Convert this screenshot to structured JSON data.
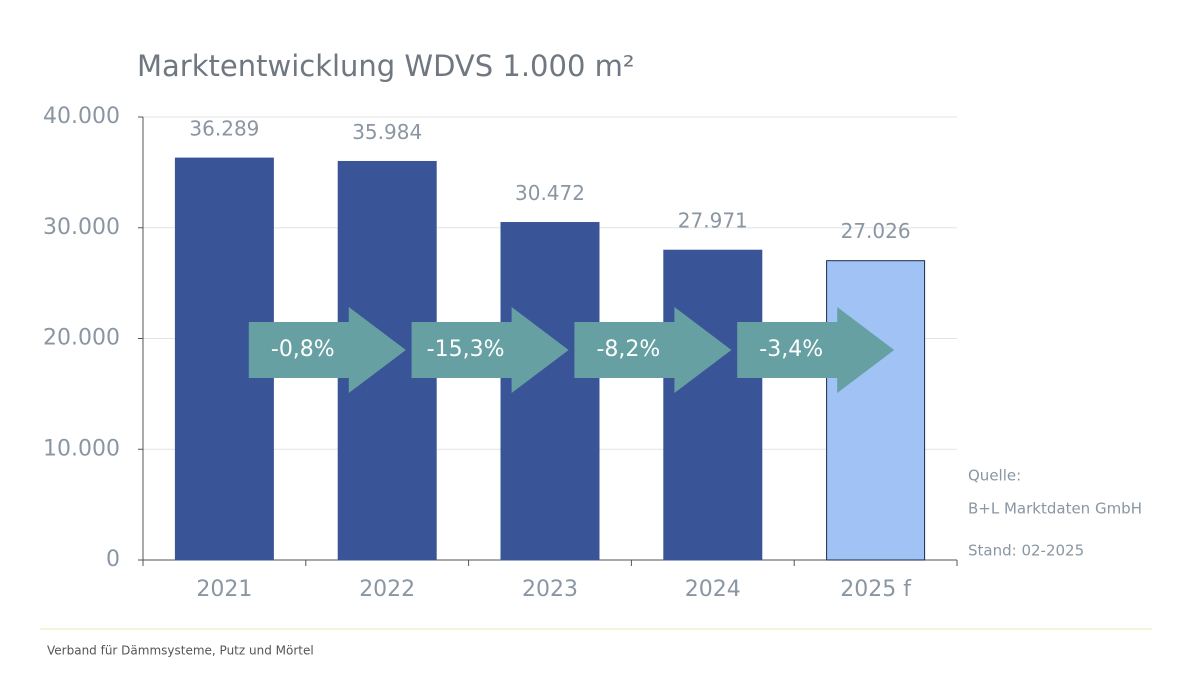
{
  "chart_data": {
    "type": "bar",
    "title": "Marktentwicklung WDVS 1.000 m²",
    "categories": [
      "2021",
      "2022",
      "2023",
      "2024",
      "2025 f"
    ],
    "values": [
      36289,
      35984,
      30472,
      27971,
      27026
    ],
    "value_labels": [
      "36.289",
      "35.984",
      "30.472",
      "27.971",
      "27.026"
    ],
    "colors": [
      "#3a5597",
      "#3a5597",
      "#3a5597",
      "#3a5597",
      "#a0c2f5"
    ],
    "edgecolor": "#1a2a4a",
    "ylim": [
      0,
      40000
    ],
    "yticks": [
      0,
      {
        "value": 10000,
        "label": "10.000"
      },
      {
        "value": 20000,
        "label": "20.000"
      },
      {
        "value": 30000,
        "label": "30.000"
      },
      {
        "value": 40000,
        "label": "40.000"
      }
    ],
    "grid": true,
    "annotations": [
      "-0,8%",
      "-15,3%",
      "-8,2%",
      "-3,4%"
    ],
    "annotation_color": "#66a0a3",
    "notes": [
      "Quelle:",
      "B+L Marktdaten GmbH",
      "Stand: 02-2025"
    ]
  },
  "footer": "Verband für Dämmsysteme, Putz und Mörtel"
}
